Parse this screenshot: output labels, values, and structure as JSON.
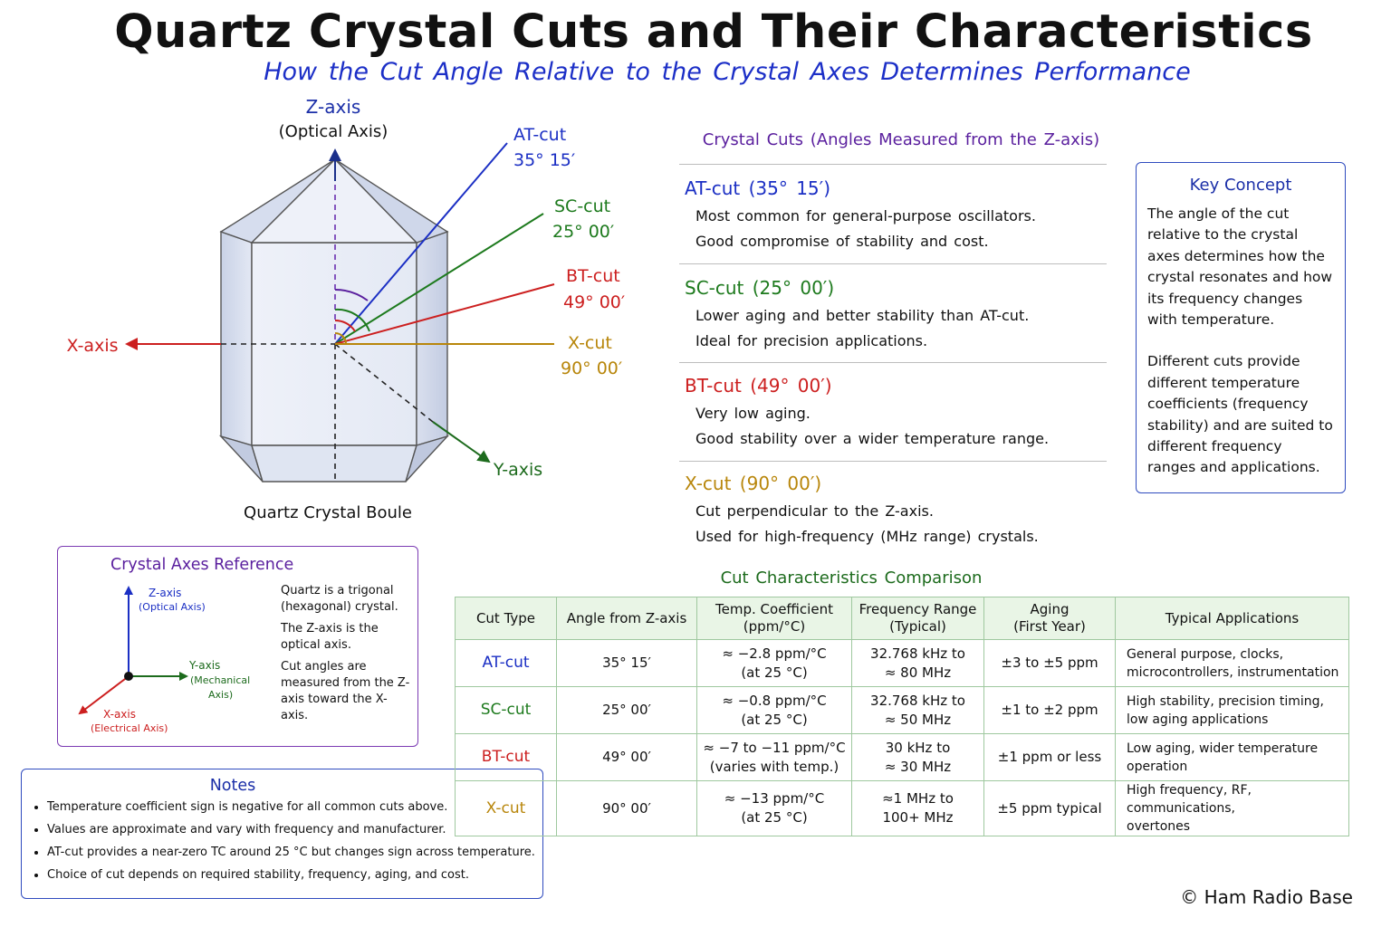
{
  "title": "Quartz Crystal Cuts and Their Characteristics",
  "subtitle": "How the Cut Angle Relative to the Crystal Axes Determines Performance",
  "diagram": {
    "z_axis_label": "Z-axis",
    "z_axis_sub": "(Optical Axis)",
    "x_axis_label": "X-axis",
    "y_axis_label": "Y-axis",
    "boule_label": "Quartz Crystal Boule",
    "cut_lines": [
      {
        "name": "AT-cut",
        "angle": "35° 15′",
        "color": "#1b2fc4"
      },
      {
        "name": "SC-cut",
        "angle": "25° 00′",
        "color": "#1d7a1d"
      },
      {
        "name": "BT-cut",
        "angle": "49° 00′",
        "color": "#cc1f1f"
      },
      {
        "name": "X-cut",
        "angle": "90° 00′",
        "color": "#b8860b"
      }
    ]
  },
  "cuts_section": {
    "heading": "Crystal Cuts (Angles Measured from the Z-axis)",
    "items": [
      {
        "title": "AT-cut (35° 15′)",
        "color": "#1b2fc4",
        "lines": [
          "Most common for general-purpose oscillators.",
          "Good compromise of stability and cost."
        ]
      },
      {
        "title": "SC-cut (25° 00′)",
        "color": "#1d7a1d",
        "lines": [
          "Lower aging and better stability than AT-cut.",
          "Ideal for precision applications."
        ]
      },
      {
        "title": "BT-cut (49° 00′)",
        "color": "#cc1f1f",
        "lines": [
          "Very low aging.",
          "Good stability over a wider temperature range."
        ]
      },
      {
        "title": "X-cut (90° 00′)",
        "color": "#b8860b",
        "lines": [
          "Cut perpendicular to the Z-axis.",
          "Used for high-frequency (MHz range) crystals."
        ]
      }
    ]
  },
  "key_concept": {
    "title": "Key Concept",
    "p1": "The angle of the cut relative to the crystal axes determines how the crystal resonates and how its frequency changes with temperature.",
    "p2": "Different cuts provide different temperature coefficients (frequency stability) and are suited to different frequency ranges and applications."
  },
  "axes_reference": {
    "title": "Crystal Axes Reference",
    "z_label": "Z-axis",
    "z_sub": "(Optical Axis)",
    "y_label": "Y-axis",
    "y_sub1": "(Mechanical",
    "y_sub2": "Axis)",
    "x_label": "X-axis",
    "x_sub": "(Electrical Axis)",
    "desc": [
      "Quartz is a trigonal (hexagonal) crystal.",
      "The Z-axis is the optical axis.",
      "Cut angles are measured from the Z-axis toward the X-axis."
    ]
  },
  "notes": {
    "title": "Notes",
    "items": [
      "Temperature coefficient sign is negative for all common cuts above.",
      "Values are approximate and vary with frequency and manufacturer.",
      "AT-cut provides a near-zero TC around 25 °C but changes sign across temperature.",
      "Choice of cut depends on required stability, frequency, aging, and cost."
    ]
  },
  "comparison": {
    "title": "Cut Characteristics Comparison",
    "headers": [
      [
        "Cut Type"
      ],
      [
        "Angle from Z-axis"
      ],
      [
        "Temp. Coefficient",
        "(ppm/°C)"
      ],
      [
        "Frequency Range",
        "(Typical)"
      ],
      [
        "Aging",
        "(First Year)"
      ],
      [
        "Typical Applications"
      ]
    ],
    "rows": [
      {
        "cut": "AT-cut",
        "color": "#1b2fc4",
        "angle": "35° 15′",
        "tc": [
          "≈ −2.8 ppm/°C",
          "(at 25 °C)"
        ],
        "freq": [
          "32.768 kHz to",
          "≈ 80 MHz"
        ],
        "aging": "±3 to ±5 ppm",
        "apps": [
          "General purpose, clocks,",
          "microcontrollers, instrumentation"
        ]
      },
      {
        "cut": "SC-cut",
        "color": "#1d7a1d",
        "angle": "25° 00′",
        "tc": [
          "≈ −0.8 ppm/°C",
          "(at 25 °C)"
        ],
        "freq": [
          "32.768 kHz to",
          "≈ 50 MHz"
        ],
        "aging": "±1 to ±2 ppm",
        "apps": [
          "High stability, precision timing,",
          "low aging applications"
        ]
      },
      {
        "cut": "BT-cut",
        "color": "#cc1f1f",
        "angle": "49° 00′",
        "tc": [
          "≈ −7 to −11 ppm/°C",
          "(varies with temp.)"
        ],
        "freq": [
          "30 kHz to",
          "≈ 30 MHz"
        ],
        "aging": "±1 ppm or less",
        "apps": [
          "Low aging, wider temperature",
          "operation"
        ]
      },
      {
        "cut": "X-cut",
        "color": "#b8860b",
        "angle": "90° 00′",
        "tc": [
          "≈ −13 ppm/°C",
          "(at 25 °C)"
        ],
        "freq": [
          "≈1 MHz to",
          "100+ MHz"
        ],
        "aging": "±5 ppm typical",
        "apps": [
          "High frequency, RF, communications,",
          "overtones"
        ]
      }
    ]
  },
  "copyright": "© Ham Radio Base"
}
